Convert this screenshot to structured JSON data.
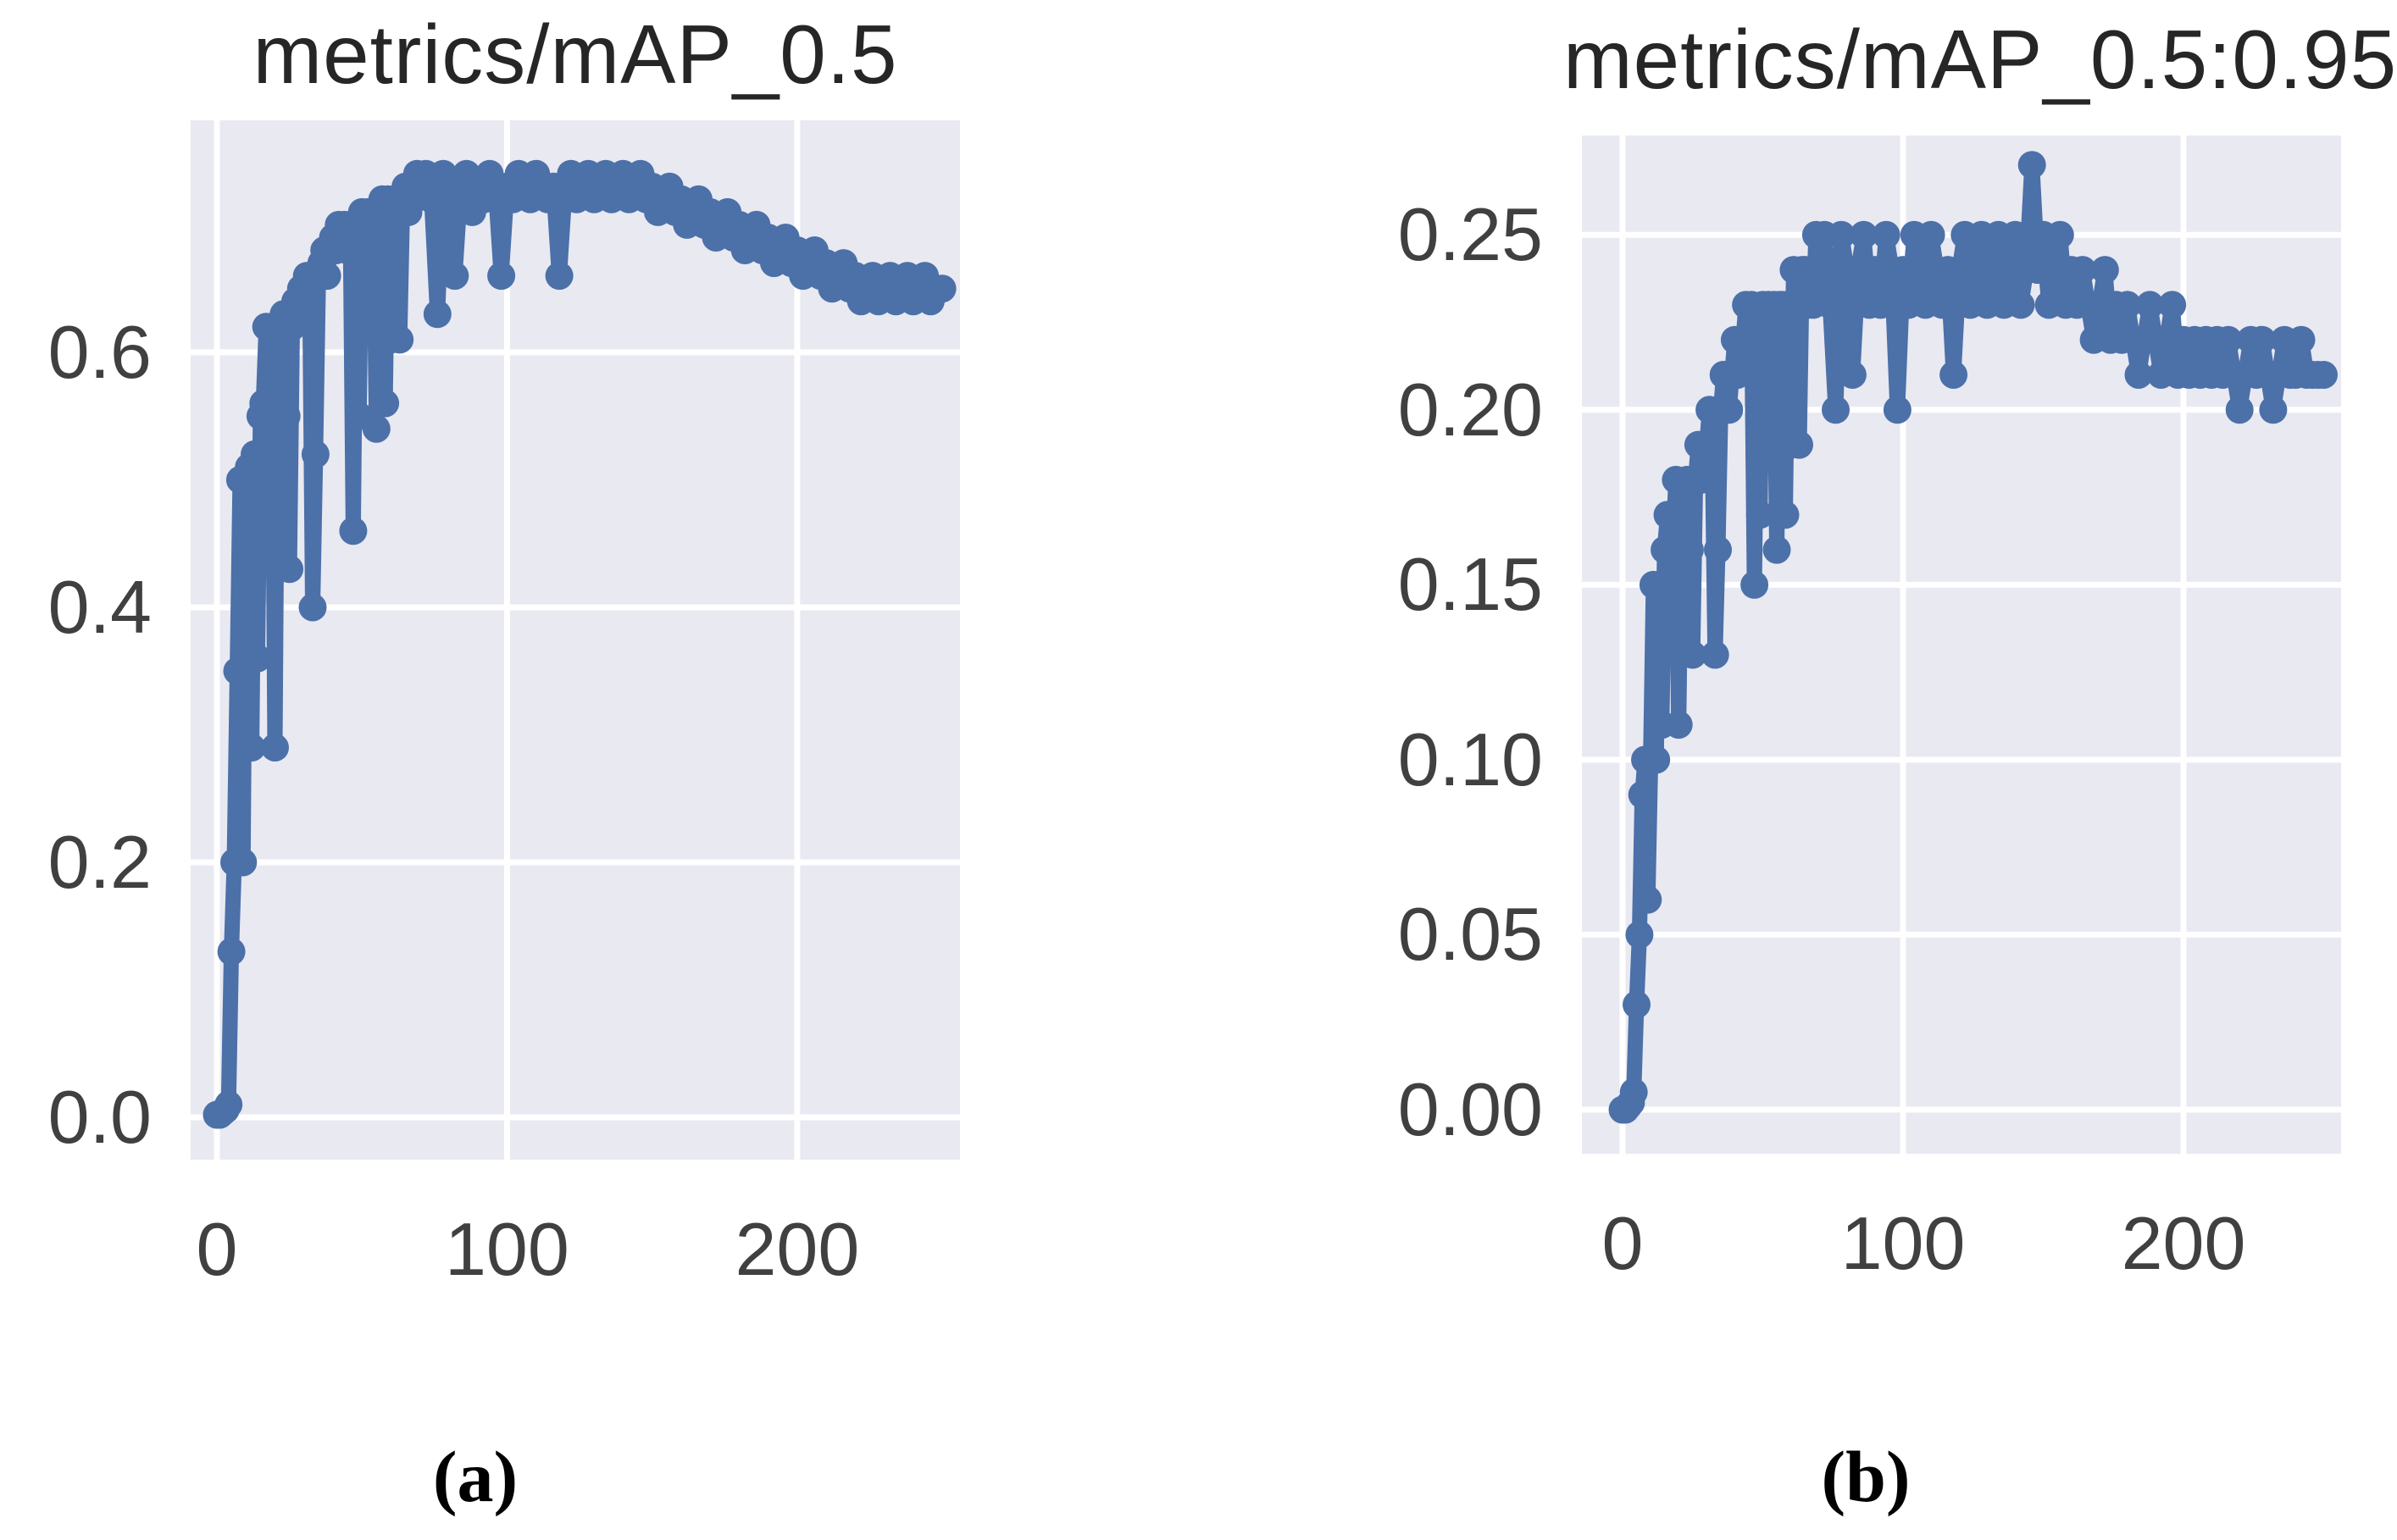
{
  "figure": {
    "captions": [
      "(a)",
      "(b)"
    ]
  },
  "colors": {
    "plot_background": "#e9e9f2",
    "grid": "#ffffff",
    "series_blue": "#4c70a8",
    "title_text": "#262626",
    "tick_text": "#404040",
    "caption_text": "#000000"
  },
  "chart_data": [
    {
      "type": "line",
      "title": "metrics/mAP_0.5",
      "xlabel": "",
      "ylabel": "",
      "legend": null,
      "grid": true,
      "marker": "circle",
      "line_color": "#4c70a8",
      "background": "#e9e9f2",
      "grid_color": "#ffffff",
      "xlim": [
        -9.05,
        256.1
      ],
      "ylim": [
        -0.0332,
        0.782
      ],
      "xticks": [
        {
          "v": 0,
          "label": "0"
        },
        {
          "v": 100,
          "label": "100"
        },
        {
          "v": 200,
          "label": "200"
        }
      ],
      "yticks": [
        {
          "v": 0.0,
          "label": "0.0"
        },
        {
          "v": 0.2,
          "label": "0.2"
        },
        {
          "v": 0.4,
          "label": "0.4"
        },
        {
          "v": 0.6,
          "label": "0.6"
        }
      ],
      "x": [
        0,
        1,
        2,
        3,
        4,
        5,
        6,
        7,
        8,
        9,
        10,
        11,
        12,
        13,
        14,
        15,
        16,
        17,
        18,
        19,
        20,
        21,
        22,
        23,
        24,
        25,
        26,
        27,
        28,
        29,
        30,
        31,
        32,
        33,
        34,
        35,
        36,
        37,
        38,
        39,
        40,
        41,
        42,
        43,
        44,
        45,
        46,
        47,
        48,
        49,
        50,
        51,
        52,
        53,
        54,
        55,
        56,
        57,
        58,
        59,
        60,
        61,
        62,
        63,
        64,
        65,
        66,
        67,
        68,
        69,
        70,
        72,
        74,
        76,
        78,
        80,
        82,
        84,
        86,
        88,
        90,
        92,
        94,
        96,
        98,
        100,
        102,
        104,
        106,
        108,
        110,
        112,
        114,
        116,
        118,
        120,
        122,
        124,
        126,
        128,
        130,
        132,
        134,
        136,
        138,
        140,
        142,
        144,
        146,
        148,
        150,
        152,
        154,
        156,
        158,
        160,
        162,
        164,
        166,
        168,
        170,
        172,
        174,
        176,
        178,
        180,
        182,
        184,
        186,
        188,
        190,
        192,
        194,
        196,
        198,
        200,
        202,
        204,
        206,
        208,
        210,
        212,
        214,
        216,
        218,
        220,
        222,
        224,
        226,
        228,
        230,
        232,
        234,
        236,
        238,
        240,
        242,
        244,
        246,
        248,
        250
      ],
      "y": [
        0.002,
        0.002,
        0.004,
        0.006,
        0.01,
        0.13,
        0.2,
        0.35,
        0.5,
        0.2,
        0.5,
        0.51,
        0.29,
        0.52,
        0.36,
        0.55,
        0.56,
        0.62,
        0.55,
        0.62,
        0.29,
        0.62,
        0.5,
        0.63,
        0.55,
        0.43,
        0.62,
        0.64,
        0.63,
        0.65,
        0.64,
        0.66,
        0.65,
        0.4,
        0.52,
        0.66,
        0.67,
        0.68,
        0.66,
        0.68,
        0.69,
        0.68,
        0.7,
        0.69,
        0.7,
        0.68,
        0.7,
        0.46,
        0.7,
        0.55,
        0.71,
        0.7,
        0.71,
        0.68,
        0.71,
        0.54,
        0.71,
        0.72,
        0.56,
        0.72,
        0.61,
        0.72,
        0.71,
        0.61,
        0.72,
        0.73,
        0.71,
        0.73,
        0.72,
        0.74,
        0.73,
        0.74,
        0.72,
        0.63,
        0.74,
        0.73,
        0.66,
        0.73,
        0.74,
        0.71,
        0.73,
        0.72,
        0.74,
        0.73,
        0.66,
        0.73,
        0.72,
        0.74,
        0.73,
        0.72,
        0.74,
        0.73,
        0.72,
        0.73,
        0.66,
        0.73,
        0.74,
        0.72,
        0.73,
        0.74,
        0.72,
        0.73,
        0.74,
        0.72,
        0.73,
        0.74,
        0.72,
        0.73,
        0.74,
        0.72,
        0.73,
        0.71,
        0.72,
        0.73,
        0.71,
        0.72,
        0.7,
        0.71,
        0.72,
        0.7,
        0.71,
        0.69,
        0.7,
        0.71,
        0.69,
        0.7,
        0.68,
        0.69,
        0.7,
        0.68,
        0.69,
        0.67,
        0.68,
        0.69,
        0.67,
        0.68,
        0.66,
        0.67,
        0.68,
        0.66,
        0.67,
        0.65,
        0.66,
        0.67,
        0.65,
        0.66,
        0.64,
        0.65,
        0.66,
        0.64,
        0.65,
        0.66,
        0.64,
        0.65,
        0.66,
        0.64,
        0.65,
        0.66,
        0.64,
        0.65,
        0.65
      ]
    },
    {
      "type": "line",
      "title": "metrics/mAP_0.5:0.95",
      "xlabel": "",
      "ylabel": "",
      "legend": null,
      "grid": true,
      "marker": "circle",
      "line_color": "#4c70a8",
      "background": "#e9e9f2",
      "grid_color": "#ffffff",
      "xlim": [
        -14.5,
        256.2
      ],
      "ylim": [
        -0.0126,
        0.2784
      ],
      "xticks": [
        {
          "v": 0,
          "label": "0"
        },
        {
          "v": 100,
          "label": "100"
        },
        {
          "v": 200,
          "label": "200"
        }
      ],
      "yticks": [
        {
          "v": 0.0,
          "label": "0.00"
        },
        {
          "v": 0.05,
          "label": "0.05"
        },
        {
          "v": 0.1,
          "label": "0.10"
        },
        {
          "v": 0.15,
          "label": "0.15"
        },
        {
          "v": 0.2,
          "label": "0.20"
        },
        {
          "v": 0.25,
          "label": "0.25"
        }
      ],
      "x": [
        0,
        1,
        2,
        3,
        4,
        5,
        6,
        7,
        8,
        9,
        10,
        11,
        12,
        13,
        14,
        15,
        16,
        17,
        18,
        19,
        20,
        21,
        22,
        23,
        24,
        25,
        26,
        27,
        28,
        29,
        30,
        31,
        32,
        33,
        34,
        35,
        36,
        37,
        38,
        39,
        40,
        41,
        42,
        43,
        44,
        45,
        46,
        47,
        48,
        49,
        50,
        51,
        52,
        53,
        54,
        55,
        56,
        57,
        58,
        59,
        60,
        61,
        62,
        63,
        64,
        65,
        66,
        67,
        68,
        69,
        70,
        72,
        74,
        76,
        78,
        80,
        82,
        84,
        86,
        88,
        90,
        92,
        94,
        96,
        98,
        100,
        102,
        104,
        106,
        108,
        110,
        112,
        114,
        116,
        118,
        120,
        122,
        124,
        126,
        128,
        130,
        132,
        134,
        136,
        138,
        140,
        142,
        144,
        146,
        148,
        150,
        152,
        154,
        156,
        158,
        160,
        162,
        164,
        166,
        168,
        170,
        172,
        174,
        176,
        178,
        180,
        182,
        184,
        186,
        188,
        190,
        192,
        194,
        196,
        198,
        200,
        202,
        204,
        206,
        208,
        210,
        212,
        214,
        216,
        218,
        220,
        222,
        224,
        226,
        228,
        230,
        232,
        234,
        236,
        238,
        240,
        242,
        244,
        246,
        248,
        250
      ],
      "y": [
        0.0,
        0.0,
        0.001,
        0.002,
        0.005,
        0.03,
        0.05,
        0.09,
        0.1,
        0.06,
        0.1,
        0.15,
        0.1,
        0.15,
        0.11,
        0.16,
        0.17,
        0.17,
        0.16,
        0.18,
        0.11,
        0.17,
        0.15,
        0.18,
        0.16,
        0.13,
        0.18,
        0.19,
        0.18,
        0.19,
        0.19,
        0.2,
        0.19,
        0.13,
        0.16,
        0.2,
        0.21,
        0.21,
        0.2,
        0.21,
        0.22,
        0.21,
        0.22,
        0.22,
        0.23,
        0.22,
        0.23,
        0.15,
        0.22,
        0.17,
        0.23,
        0.22,
        0.23,
        0.21,
        0.23,
        0.16,
        0.23,
        0.23,
        0.17,
        0.23,
        0.19,
        0.24,
        0.23,
        0.19,
        0.24,
        0.24,
        0.23,
        0.24,
        0.23,
        0.25,
        0.24,
        0.25,
        0.23,
        0.2,
        0.25,
        0.24,
        0.21,
        0.24,
        0.25,
        0.23,
        0.24,
        0.23,
        0.25,
        0.24,
        0.2,
        0.24,
        0.23,
        0.25,
        0.24,
        0.23,
        0.25,
        0.24,
        0.23,
        0.24,
        0.21,
        0.24,
        0.25,
        0.23,
        0.24,
        0.25,
        0.23,
        0.24,
        0.25,
        0.23,
        0.24,
        0.25,
        0.23,
        0.24,
        0.27,
        0.24,
        0.25,
        0.23,
        0.24,
        0.25,
        0.23,
        0.24,
        0.23,
        0.24,
        0.23,
        0.22,
        0.23,
        0.24,
        0.22,
        0.23,
        0.22,
        0.23,
        0.22,
        0.21,
        0.22,
        0.23,
        0.22,
        0.21,
        0.22,
        0.23,
        0.21,
        0.22,
        0.21,
        0.22,
        0.21,
        0.22,
        0.21,
        0.22,
        0.21,
        0.22,
        0.21,
        0.2,
        0.21,
        0.22,
        0.21,
        0.22,
        0.21,
        0.2,
        0.21,
        0.22,
        0.21,
        0.21,
        0.22,
        0.21,
        0.21,
        0.21,
        0.21
      ]
    }
  ]
}
